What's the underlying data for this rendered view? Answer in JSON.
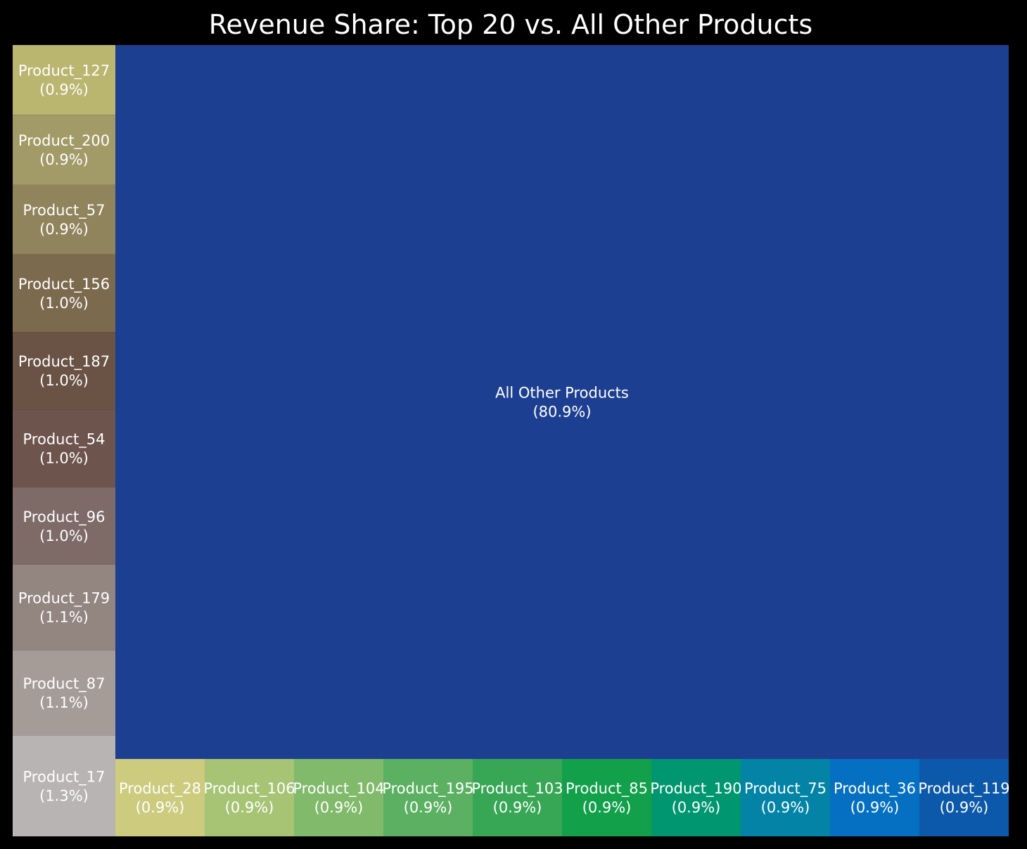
{
  "chart_data": {
    "type": "treemap",
    "title": "Revenue Share: Top 20 vs. All Other Products",
    "groups": [
      {
        "name": "left-column",
        "tiles": [
          {
            "label": "Product_127",
            "pct_label": "(0.9%)",
            "value": 0.9,
            "color": "#bab56f"
          },
          {
            "label": "Product_200",
            "pct_label": "(0.9%)",
            "value": 0.9,
            "color": "#a29a67"
          },
          {
            "label": "Product_57",
            "pct_label": "(0.9%)",
            "value": 0.9,
            "color": "#8f845c"
          },
          {
            "label": "Product_156",
            "pct_label": "(1.0%)",
            "value": 1.0,
            "color": "#7c6a4f"
          },
          {
            "label": "Product_187",
            "pct_label": "(1.0%)",
            "value": 1.0,
            "color": "#6a5244"
          },
          {
            "label": "Product_54",
            "pct_label": "(1.0%)",
            "value": 1.0,
            "color": "#6d554d"
          },
          {
            "label": "Product_96",
            "pct_label": "(1.0%)",
            "value": 1.0,
            "color": "#7e6b68"
          },
          {
            "label": "Product_179",
            "pct_label": "(1.1%)",
            "value": 1.1,
            "color": "#938580"
          },
          {
            "label": "Product_87",
            "pct_label": "(1.1%)",
            "value": 1.1,
            "color": "#a59c98"
          },
          {
            "label": "Product_17",
            "pct_label": "(1.3%)",
            "value": 1.3,
            "color": "#b8b4b3"
          }
        ]
      },
      {
        "name": "main",
        "tiles": [
          {
            "label": "All Other Products",
            "pct_label": "(80.9%)",
            "value": 80.9,
            "color": "#1d3f91"
          }
        ]
      },
      {
        "name": "bottom-row",
        "tiles": [
          {
            "label": "Product_28",
            "pct_label": "(0.9%)",
            "value": 0.9,
            "color": "#cccb7e"
          },
          {
            "label": "Product_106",
            "pct_label": "(0.9%)",
            "value": 0.9,
            "color": "#a6c474"
          },
          {
            "label": "Product_104",
            "pct_label": "(0.9%)",
            "value": 0.9,
            "color": "#81ba6b"
          },
          {
            "label": "Product_195",
            "pct_label": "(0.9%)",
            "value": 0.9,
            "color": "#5cb062"
          },
          {
            "label": "Product_103",
            "pct_label": "(0.9%)",
            "value": 0.9,
            "color": "#38a755"
          },
          {
            "label": "Product_85",
            "pct_label": "(0.9%)",
            "value": 0.9,
            "color": "#12a04b"
          },
          {
            "label": "Product_190",
            "pct_label": "(0.9%)",
            "value": 0.9,
            "color": "#009670"
          },
          {
            "label": "Product_75",
            "pct_label": "(0.9%)",
            "value": 0.9,
            "color": "#0384a6"
          },
          {
            "label": "Product_36",
            "pct_label": "(0.9%)",
            "value": 0.9,
            "color": "#0570c2"
          },
          {
            "label": "Product_119",
            "pct_label": "(0.9%)",
            "value": 0.9,
            "color": "#0c58aa"
          }
        ]
      }
    ]
  }
}
